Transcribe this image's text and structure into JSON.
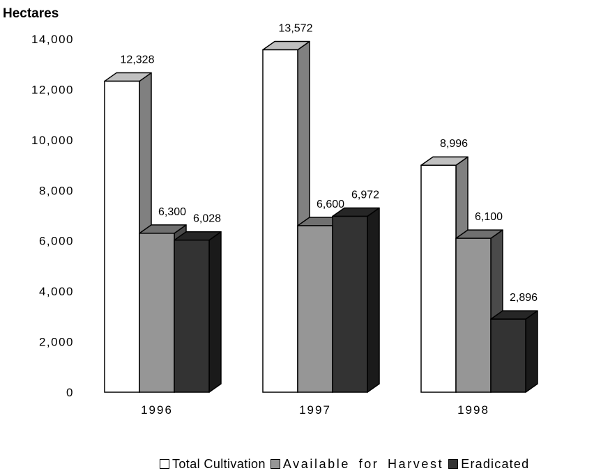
{
  "chart_data": {
    "type": "bar",
    "style": "3d-clustered",
    "ylabel": "Hectares",
    "xlabel": "",
    "ylim": [
      0,
      14000
    ],
    "yticks": [
      "0",
      "2,000",
      "4,000",
      "6,000",
      "8,000",
      "10,000",
      "12,000",
      "14,000"
    ],
    "tick_values": [
      0,
      2000,
      4000,
      6000,
      8000,
      10000,
      12000,
      14000
    ],
    "categories": [
      "1996",
      "1997",
      "1998"
    ],
    "series": [
      {
        "name": "Total Cultivation",
        "values": [
          12328,
          13572,
          8996
        ],
        "labels": [
          "12,328",
          "13,572",
          "8,996"
        ],
        "color": "#ffffff",
        "side_color": "#808080",
        "top_color": "#c0c0c0"
      },
      {
        "name": "Available for Harvest",
        "values": [
          6300,
          6600,
          6100
        ],
        "labels": [
          "6,300",
          "6,600",
          "6,100"
        ],
        "color": "#969696",
        "side_color": "#4a4a4a",
        "top_color": "#707070"
      },
      {
        "name": "Eradicated",
        "values": [
          6028,
          6972,
          2896
        ],
        "labels": [
          "6,028",
          "6,972",
          "2,896"
        ],
        "color": "#333333",
        "side_color": "#1a1a1a",
        "top_color": "#262626"
      }
    ],
    "grid": false,
    "legend_position": "bottom-right"
  }
}
